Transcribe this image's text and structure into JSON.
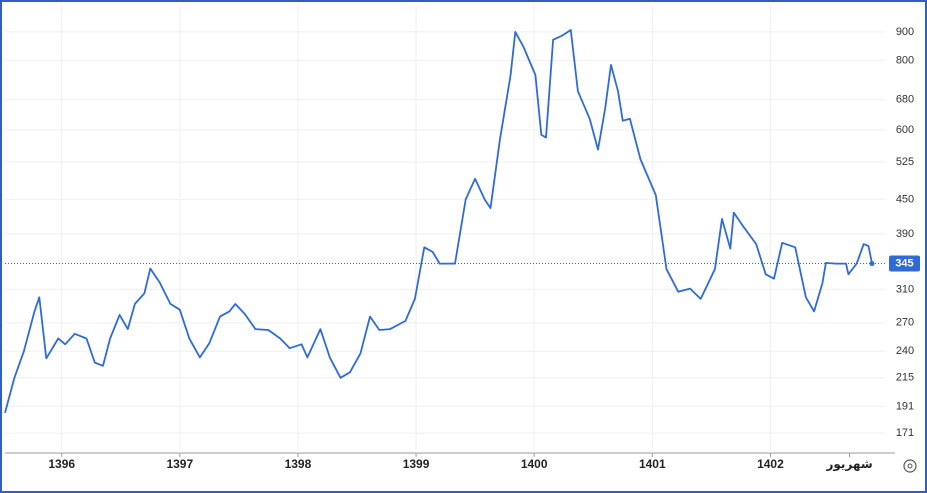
{
  "chart_data": {
    "type": "line",
    "log_scale": true,
    "grid": true,
    "xlim": [
      1395.52,
      1402.97
    ],
    "xticks": [
      1396,
      1397,
      1398,
      1399,
      1400,
      1401,
      1402,
      {
        "value": 1402.67,
        "label": "شهریور"
      }
    ],
    "ylim": [
      157.5,
      1006
    ],
    "yticks": [
      171,
      191,
      215,
      240,
      270,
      310,
      390,
      450,
      525,
      600,
      680,
      800,
      900
    ],
    "series": [
      {
        "color": "#2f6bd6",
        "x": [
          1395.52,
          1395.6,
          1395.68,
          1395.77,
          1395.81,
          1395.87,
          1395.97,
          1396.03,
          1396.11,
          1396.21,
          1396.28,
          1396.35,
          1396.41,
          1396.49,
          1396.56,
          1396.62,
          1396.7,
          1396.75,
          1396.83,
          1396.92,
          1397.0,
          1397.08,
          1397.17,
          1397.25,
          1397.34,
          1397.42,
          1397.47,
          1397.55,
          1397.64,
          1397.75,
          1397.85,
          1397.93,
          1398.03,
          1398.08,
          1398.19,
          1398.27,
          1398.36,
          1398.44,
          1398.53,
          1398.61,
          1398.69,
          1398.78,
          1398.91,
          1398.99,
          1399.07,
          1399.14,
          1399.2,
          1399.33,
          1399.42,
          1399.5,
          1399.58,
          1399.63,
          1399.71,
          1399.8,
          1399.84,
          1399.91,
          1400.01,
          1400.06,
          1400.1,
          1400.16,
          1400.24,
          1400.31,
          1400.37,
          1400.47,
          1400.54,
          1400.6,
          1400.65,
          1400.71,
          1400.75,
          1400.81,
          1400.9,
          1401.03,
          1401.12,
          1401.22,
          1401.32,
          1401.41,
          1401.53,
          1401.59,
          1401.66,
          1401.69,
          1401.76,
          1401.88,
          1401.96,
          1402.03,
          1402.1,
          1402.21,
          1402.3,
          1402.37,
          1402.44,
          1402.47,
          1402.55,
          1402.64,
          1402.66,
          1402.73,
          1402.79,
          1402.83,
          1402.86
        ],
        "values": [
          186,
          215,
          240,
          283,
          300,
          233,
          253,
          247,
          258,
          253,
          229,
          226,
          253,
          279,
          263,
          292,
          305,
          338,
          319,
          292,
          285,
          253,
          234,
          248,
          277,
          283,
          292,
          280,
          263,
          262,
          253,
          243,
          247,
          234,
          263,
          234,
          215,
          220,
          238,
          277,
          262,
          263,
          272,
          298,
          369,
          362,
          345,
          345,
          450,
          490,
          450,
          434,
          576,
          753,
          900,
          845,
          753,
          588,
          581,
          871,
          887,
          907,
          704,
          628,
          553,
          654,
          785,
          704,
          623,
          628,
          531,
          458,
          337,
          307,
          311,
          298,
          337,
          415,
          367,
          426,
          405,
          374,
          330,
          324,
          376,
          369,
          300,
          283,
          318,
          346,
          345,
          345,
          330,
          345,
          374,
          371,
          345
        ]
      }
    ]
  }
}
